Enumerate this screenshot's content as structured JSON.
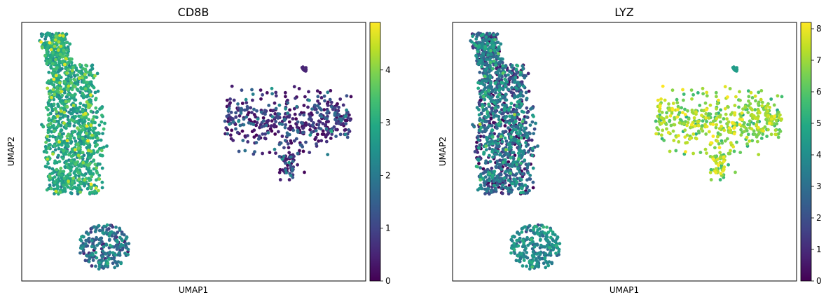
{
  "chart_data": [
    {
      "type": "scatter",
      "title": "CD8B",
      "xlabel": "UMAP1",
      "ylabel": "UMAP2",
      "xticks": "none",
      "yticks": "none",
      "grid": false,
      "colorbar": {
        "colormap": "viridis",
        "range": [
          0,
          4.9
        ],
        "ticks": [
          0,
          1,
          2,
          3,
          4
        ],
        "tick_labels": [
          "0",
          "1",
          "2",
          "3",
          "4"
        ]
      },
      "clusters": [
        {
          "id": "t-cell-cluster",
          "description_values": "mostly 2.2-3.4, scattered highs to 4.8"
        },
        {
          "id": "right-cluster",
          "description_values": "mostly 0-1.5"
        },
        {
          "id": "bottom-cluster",
          "description_values": "mostly 0.5-2.5"
        },
        {
          "id": "tiny-cluster",
          "description_values": "about 0.5"
        }
      ]
    },
    {
      "type": "scatter",
      "title": "LYZ",
      "xlabel": "UMAP1",
      "ylabel": "UMAP2",
      "xticks": "none",
      "yticks": "none",
      "grid": false,
      "colorbar": {
        "colormap": "viridis",
        "range": [
          0,
          8.2
        ],
        "ticks": [
          0,
          1,
          2,
          3,
          4,
          5,
          6,
          7,
          8
        ],
        "tick_labels": [
          "0",
          "1",
          "2",
          "3",
          "4",
          "5",
          "6",
          "7",
          "8"
        ]
      },
      "clusters": [
        {
          "id": "t-cell-cluster",
          "description_values": "mostly 0-4.5"
        },
        {
          "id": "right-cluster",
          "description_values": "mostly 6-8"
        },
        {
          "id": "bottom-cluster",
          "description_values": "mostly 3-5"
        },
        {
          "id": "tiny-cluster",
          "description_values": "about 4.5"
        }
      ]
    }
  ]
}
